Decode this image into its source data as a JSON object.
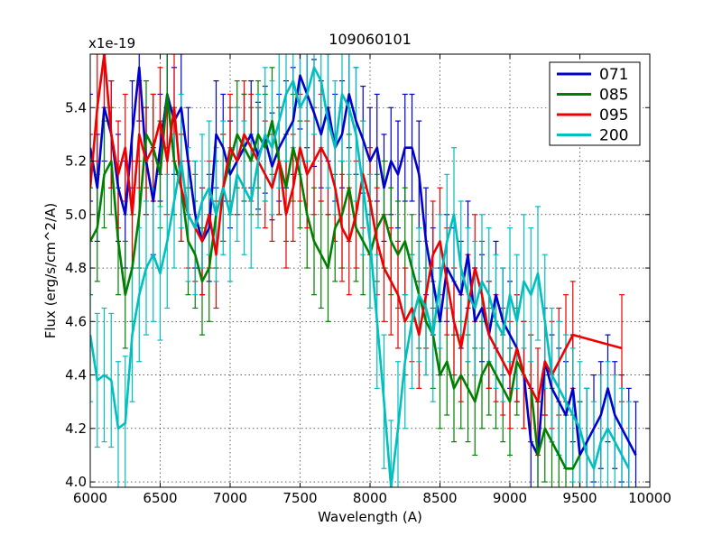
{
  "chart_data": {
    "type": "line",
    "title": "109060101",
    "xlabel": "Wavelength (A)",
    "ylabel": "Flux (erg/s/cm^2/A)",
    "y_multiplier": "x1e-19",
    "xlim": [
      6000,
      10000
    ],
    "ylim": [
      3.98,
      5.6
    ],
    "x_ticks": [
      6000,
      6500,
      7000,
      7500,
      8000,
      8500,
      9000,
      9500,
      10000
    ],
    "x_tick_labels": [
      "6000",
      "6500",
      "7000",
      "7500",
      "8000",
      "8500",
      "9000",
      "9500",
      "10000"
    ],
    "y_ticks": [
      4.0,
      4.2,
      4.4,
      4.6,
      4.8,
      5.0,
      5.2,
      5.4
    ],
    "y_tick_labels": [
      "4.0",
      "4.2",
      "4.4",
      "4.6",
      "4.8",
      "5.0",
      "5.2",
      "5.4"
    ],
    "grid": true,
    "legend_position": "top-right",
    "series": [
      {
        "name": "071",
        "color": "#0000cc",
        "error": 0.2,
        "x": [
          6000,
          6050,
          6100,
          6150,
          6200,
          6250,
          6300,
          6350,
          6400,
          6450,
          6500,
          6550,
          6600,
          6650,
          6700,
          6750,
          6800,
          6850,
          6900,
          6950,
          7000,
          7050,
          7100,
          7150,
          7200,
          7250,
          7300,
          7350,
          7400,
          7450,
          7500,
          7550,
          7600,
          7650,
          7700,
          7750,
          7800,
          7850,
          7900,
          7950,
          8000,
          8050,
          8100,
          8150,
          8200,
          8250,
          8300,
          8350,
          8400,
          8450,
          8500,
          8550,
          8600,
          8650,
          8700,
          8750,
          8800,
          8850,
          8900,
          8950,
          9000,
          9050,
          9100,
          9150,
          9200,
          9250,
          9300,
          9350,
          9400,
          9450,
          9500,
          9550,
          9600,
          9650,
          9700,
          9750,
          9800,
          9850,
          9900
        ],
        "y": [
          5.25,
          5.1,
          5.4,
          5.3,
          5.1,
          5.0,
          5.3,
          5.55,
          5.2,
          5.05,
          5.25,
          5.45,
          5.35,
          5.4,
          5.2,
          5.0,
          4.9,
          4.95,
          5.3,
          5.25,
          5.15,
          5.2,
          5.25,
          5.3,
          5.22,
          5.28,
          5.18,
          5.25,
          5.3,
          5.35,
          5.52,
          5.45,
          5.38,
          5.3,
          5.4,
          5.25,
          5.3,
          5.45,
          5.35,
          5.28,
          5.2,
          5.25,
          5.1,
          5.2,
          5.15,
          5.25,
          5.25,
          5.15,
          4.9,
          4.75,
          4.6,
          4.8,
          4.75,
          4.7,
          4.85,
          4.6,
          4.65,
          4.55,
          4.7,
          4.6,
          4.55,
          4.5,
          4.4,
          4.15,
          4.1,
          4.45,
          4.35,
          4.3,
          4.25,
          4.35,
          4.1,
          4.15,
          4.2,
          4.25,
          4.35,
          4.25,
          4.2,
          4.15,
          4.1
        ]
      },
      {
        "name": "085",
        "color": "#008000",
        "error": 0.2,
        "x": [
          6000,
          6050,
          6100,
          6150,
          6200,
          6250,
          6300,
          6350,
          6400,
          6450,
          6500,
          6550,
          6600,
          6650,
          6700,
          6750,
          6800,
          6850,
          6900,
          6950,
          7000,
          7050,
          7100,
          7150,
          7200,
          7250,
          7300,
          7350,
          7400,
          7450,
          7500,
          7550,
          7600,
          7650,
          7700,
          7750,
          7800,
          7850,
          7900,
          7950,
          8000,
          8050,
          8100,
          8150,
          8200,
          8250,
          8300,
          8350,
          8400,
          8450,
          8500,
          8550,
          8600,
          8650,
          8700,
          8750,
          8800,
          8850,
          8900,
          8950,
          9000,
          9050,
          9100,
          9150,
          9200,
          9250,
          9300,
          9350,
          9400,
          9450,
          9500
        ],
        "y": [
          4.9,
          4.95,
          5.15,
          5.2,
          4.9,
          4.7,
          4.8,
          5.0,
          5.3,
          5.25,
          5.15,
          5.45,
          5.2,
          5.1,
          4.9,
          4.85,
          4.75,
          4.8,
          5.0,
          5.1,
          5.2,
          5.3,
          5.25,
          5.2,
          5.3,
          5.25,
          5.35,
          5.2,
          5.1,
          5.25,
          5.15,
          5.0,
          4.9,
          4.85,
          4.8,
          4.95,
          5.0,
          5.1,
          4.95,
          4.9,
          4.85,
          4.95,
          5.0,
          4.9,
          4.85,
          4.9,
          4.8,
          4.7,
          4.6,
          4.55,
          4.4,
          4.45,
          4.35,
          4.4,
          4.35,
          4.3,
          4.4,
          4.45,
          4.4,
          4.35,
          4.3,
          4.45,
          4.4,
          4.35,
          4.1,
          4.2,
          4.15,
          4.1,
          4.05,
          4.05,
          4.1
        ]
      },
      {
        "name": "095",
        "color": "#ee0000",
        "error": 0.2,
        "x": [
          6000,
          6050,
          6100,
          6150,
          6200,
          6250,
          6300,
          6350,
          6400,
          6450,
          6500,
          6550,
          6600,
          6650,
          6700,
          6750,
          6800,
          6850,
          6900,
          6950,
          7000,
          7050,
          7100,
          7150,
          7200,
          7250,
          7300,
          7350,
          7400,
          7450,
          7500,
          7550,
          7600,
          7650,
          7700,
          7750,
          7800,
          7850,
          7900,
          7950,
          8000,
          8050,
          8100,
          8150,
          8200,
          8250,
          8300,
          8350,
          8400,
          8450,
          8500,
          8550,
          8600,
          8650,
          8700,
          8750,
          8800,
          8850,
          8900,
          8950,
          9000,
          9050,
          9100,
          9150,
          9200,
          9250,
          9300,
          9350,
          9400,
          9450,
          9800
        ],
        "y": [
          5.1,
          5.4,
          5.6,
          5.3,
          5.15,
          5.25,
          5.0,
          5.3,
          5.2,
          5.25,
          5.35,
          5.2,
          5.4,
          5.1,
          5.0,
          4.95,
          4.9,
          5.0,
          4.85,
          5.1,
          5.25,
          5.2,
          5.3,
          5.25,
          5.2,
          5.15,
          5.1,
          5.2,
          5.0,
          5.1,
          5.25,
          5.15,
          5.2,
          5.25,
          5.2,
          5.1,
          4.95,
          4.9,
          5.0,
          5.15,
          5.05,
          4.9,
          4.8,
          4.75,
          4.7,
          4.6,
          4.65,
          4.55,
          4.7,
          4.85,
          4.9,
          4.75,
          4.6,
          4.5,
          4.65,
          4.8,
          4.7,
          4.55,
          4.5,
          4.45,
          4.4,
          4.5,
          4.4,
          4.35,
          4.3,
          4.45,
          4.4,
          4.45,
          4.5,
          4.55,
          4.5
        ]
      },
      {
        "name": "200",
        "color": "#00bfbf",
        "error": 0.25,
        "x": [
          6000,
          6050,
          6100,
          6150,
          6200,
          6250,
          6300,
          6350,
          6400,
          6450,
          6500,
          6550,
          6600,
          6650,
          6700,
          6750,
          6800,
          6850,
          6900,
          6950,
          7000,
          7050,
          7100,
          7150,
          7200,
          7250,
          7300,
          7350,
          7400,
          7450,
          7500,
          7550,
          7600,
          7650,
          7700,
          7750,
          7800,
          7850,
          7900,
          7950,
          8000,
          8050,
          8100,
          8150,
          8200,
          8250,
          8300,
          8350,
          8400,
          8450,
          8500,
          8550,
          8600,
          8650,
          8700,
          8750,
          8800,
          8850,
          8900,
          8950,
          9000,
          9050,
          9100,
          9150,
          9200,
          9250,
          9300,
          9350,
          9400,
          9450,
          9500,
          9550,
          9600,
          9650,
          9700,
          9750,
          9800,
          9850
        ],
        "y": [
          4.55,
          4.38,
          4.4,
          4.38,
          4.2,
          4.22,
          4.55,
          4.7,
          4.8,
          4.85,
          4.78,
          4.9,
          5.05,
          5.2,
          5.0,
          4.95,
          5.05,
          5.1,
          5.0,
          5.1,
          5.0,
          5.15,
          5.1,
          5.05,
          5.2,
          5.3,
          5.25,
          5.35,
          5.45,
          5.5,
          5.4,
          5.45,
          5.55,
          5.5,
          5.35,
          5.25,
          5.45,
          5.4,
          5.3,
          5.1,
          4.9,
          4.6,
          4.3,
          3.98,
          4.2,
          4.45,
          4.6,
          4.7,
          4.65,
          4.55,
          4.75,
          4.9,
          5.0,
          4.8,
          4.7,
          4.65,
          4.75,
          4.7,
          4.6,
          4.55,
          4.7,
          4.6,
          4.75,
          4.7,
          4.78,
          4.6,
          4.4,
          4.35,
          4.3,
          4.25,
          4.2,
          4.1,
          4.05,
          4.15,
          4.2,
          4.15,
          4.1,
          4.05
        ]
      }
    ]
  }
}
